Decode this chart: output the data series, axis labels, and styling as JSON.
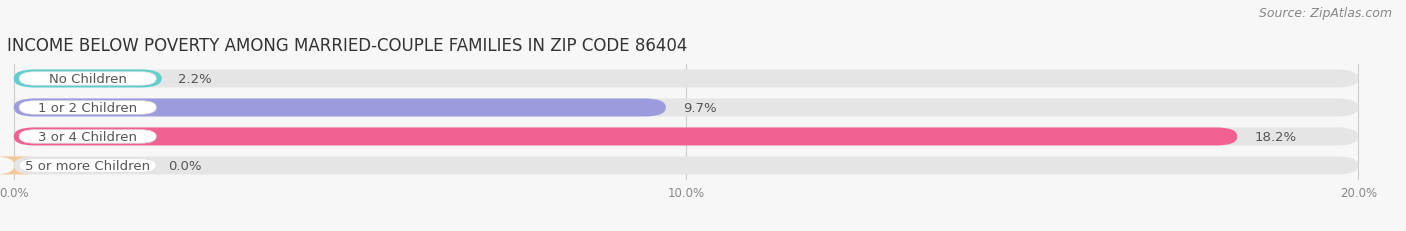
{
  "title": "INCOME BELOW POVERTY AMONG MARRIED-COUPLE FAMILIES IN ZIP CODE 86404",
  "source": "Source: ZipAtlas.com",
  "categories": [
    "No Children",
    "1 or 2 Children",
    "3 or 4 Children",
    "5 or more Children"
  ],
  "values": [
    2.2,
    9.7,
    18.2,
    0.0
  ],
  "bar_colors": [
    "#5ecece",
    "#9b9bdd",
    "#f06090",
    "#f5c89a"
  ],
  "xlim_max": 20.0,
  "xticks": [
    0.0,
    10.0,
    20.0
  ],
  "xtick_labels": [
    "0.0%",
    "10.0%",
    "20.0%"
  ],
  "background_color": "#f7f7f7",
  "bar_bg_color": "#e5e5e5",
  "title_fontsize": 12,
  "source_fontsize": 9,
  "label_fontsize": 9.5,
  "value_fontsize": 9.5
}
